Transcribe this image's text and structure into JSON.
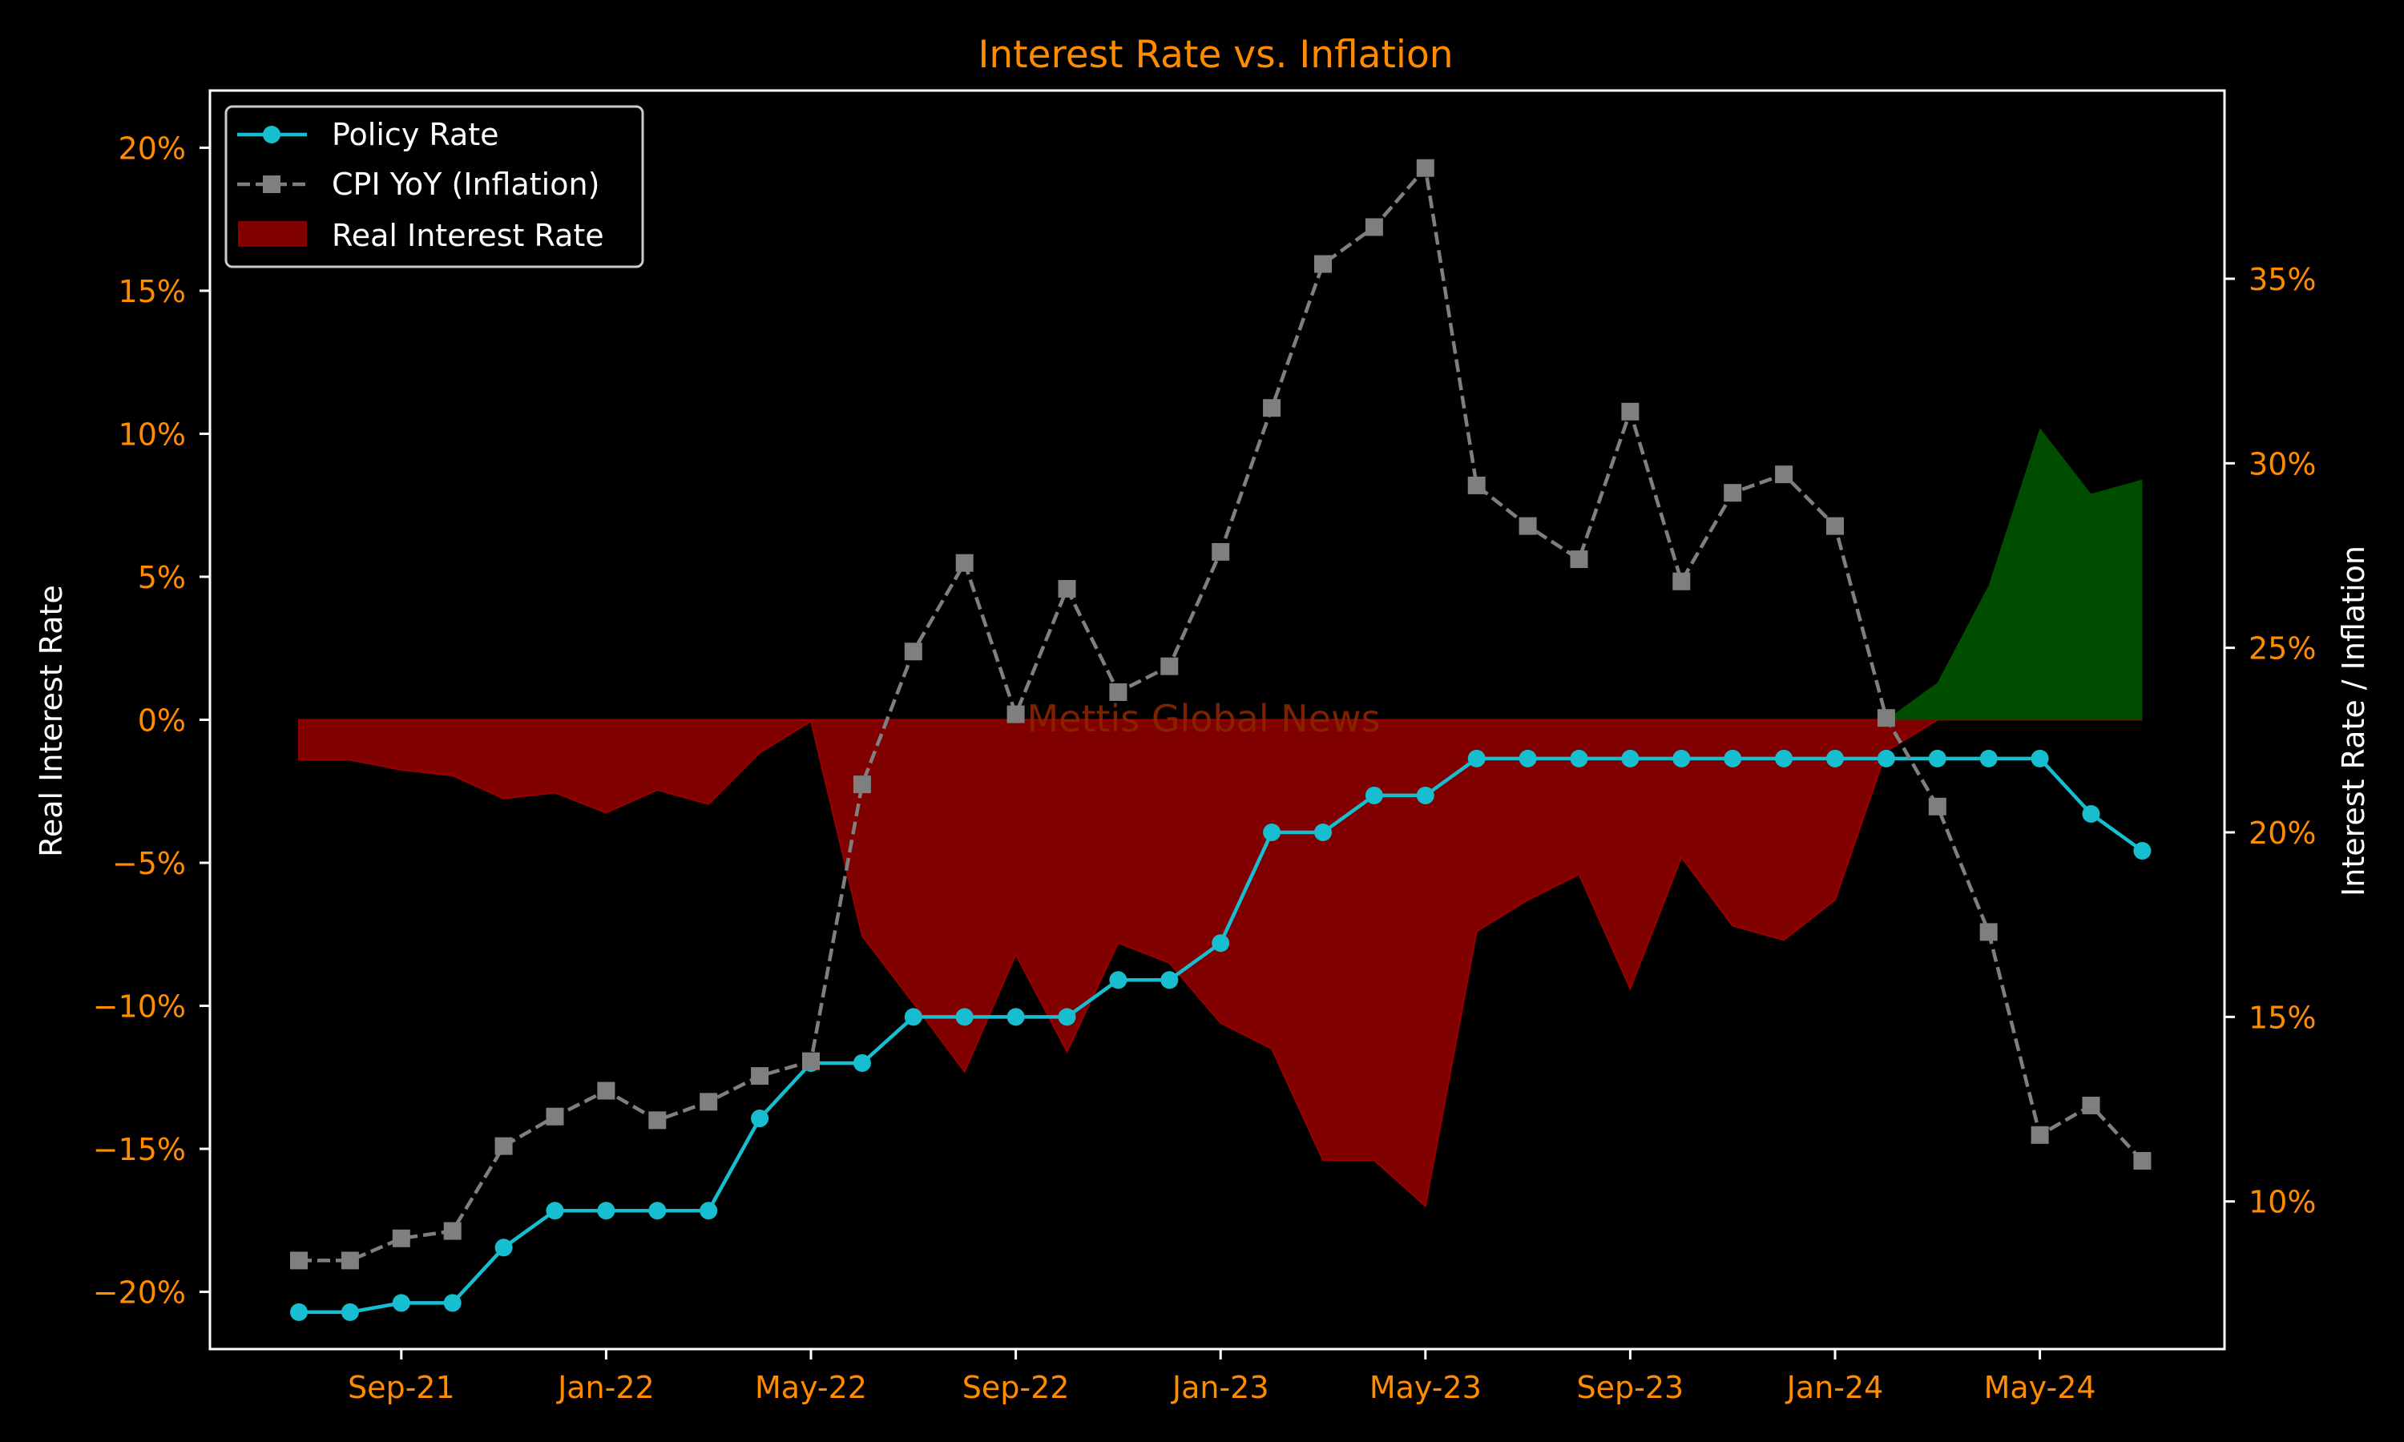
{
  "chart_data": {
    "type": "line",
    "title": "Interest Rate vs. Inflation",
    "watermark": "Mettis Global News",
    "left_axis": {
      "label": "Real Interest Rate",
      "ylim": [
        -22,
        22
      ],
      "ticks": [
        -20,
        -15,
        -10,
        -5,
        0,
        5,
        10,
        15,
        20
      ],
      "tick_labels": [
        "−20%",
        "−15%",
        "−10%",
        "−5%",
        "0%",
        "5%",
        "10%",
        "15%",
        "20%"
      ]
    },
    "right_axis": {
      "label": "Interest Rate / Inflation",
      "ylim": [
        6.0,
        40.1
      ],
      "ticks": [
        10,
        15,
        20,
        25,
        30,
        35
      ],
      "tick_labels": [
        "10%",
        "15%",
        "20%",
        "25%",
        "30%",
        "35%"
      ]
    },
    "x_axis": {
      "ticks": [
        2,
        6,
        10,
        14,
        18,
        22,
        26,
        30,
        34
      ],
      "tick_labels": [
        "Sep-21",
        "Jan-22",
        "May-22",
        "Sep-22",
        "Jan-23",
        "May-23",
        "Sep-23",
        "Jan-24",
        "May-24"
      ]
    },
    "x": [
      "Jul-21",
      "Aug-21",
      "Sep-21",
      "Oct-21",
      "Nov-21",
      "Dec-21",
      "Jan-22",
      "Feb-22",
      "Mar-22",
      "Apr-22",
      "May-22",
      "Jun-22",
      "Jul-22",
      "Aug-22",
      "Sep-22",
      "Oct-22",
      "Nov-22",
      "Dec-22",
      "Jan-23",
      "Feb-23",
      "Mar-23",
      "Apr-23",
      "May-23",
      "Jun-23",
      "Jul-23",
      "Aug-23",
      "Sep-23",
      "Oct-23",
      "Nov-23",
      "Dec-23",
      "Jan-24",
      "Feb-24",
      "Mar-24",
      "Apr-24",
      "May-24",
      "Jun-24",
      "Jul-24"
    ],
    "series": [
      {
        "name": "Policy Rate",
        "axis": "right",
        "color": "#17becf",
        "marker": "circle",
        "values": [
          7.0,
          7.0,
          7.25,
          7.25,
          8.75,
          9.75,
          9.75,
          9.75,
          9.75,
          12.25,
          13.75,
          13.75,
          15.0,
          15.0,
          15.0,
          15.0,
          16.0,
          16.0,
          17.0,
          20.0,
          20.0,
          21.0,
          21.0,
          22.0,
          22.0,
          22.0,
          22.0,
          22.0,
          22.0,
          22.0,
          22.0,
          22.0,
          22.0,
          22.0,
          22.0,
          20.5,
          19.5
        ]
      },
      {
        "name": "CPI YoY (Inflation)",
        "axis": "right",
        "color": "#7f7f7f",
        "marker": "square",
        "dashed": true,
        "values": [
          8.4,
          8.4,
          9.0,
          9.2,
          11.5,
          12.3,
          13.0,
          12.2,
          12.7,
          13.4,
          13.8,
          21.3,
          24.9,
          27.3,
          23.2,
          26.6,
          23.8,
          24.5,
          27.6,
          31.5,
          35.4,
          36.4,
          38.0,
          29.4,
          28.3,
          27.4,
          31.4,
          26.8,
          29.2,
          29.7,
          28.3,
          23.1,
          20.7,
          17.3,
          11.8,
          12.6,
          11.1
        ]
      },
      {
        "name": "Real Interest Rate",
        "axis": "left",
        "color_negative": "#800000",
        "color_positive": "#004d00",
        "fill": true,
        "values": [
          -1.4,
          -1.4,
          -1.75,
          -1.95,
          -2.75,
          -2.55,
          -3.25,
          -2.45,
          -2.95,
          -1.15,
          -0.05,
          -7.55,
          -9.9,
          -12.3,
          -8.2,
          -11.6,
          -7.8,
          -8.5,
          -10.6,
          -11.5,
          -15.4,
          -15.4,
          -17.0,
          -7.4,
          -6.3,
          -5.4,
          -9.4,
          -4.8,
          -7.2,
          -7.7,
          -6.3,
          -1.1,
          1.3,
          4.7,
          10.2,
          7.9,
          8.4
        ]
      }
    ],
    "legend": {
      "placement": "top-left",
      "entries": [
        "Policy Rate",
        "CPI YoY (Inflation)",
        "Real Interest Rate"
      ]
    },
    "grid": false
  }
}
